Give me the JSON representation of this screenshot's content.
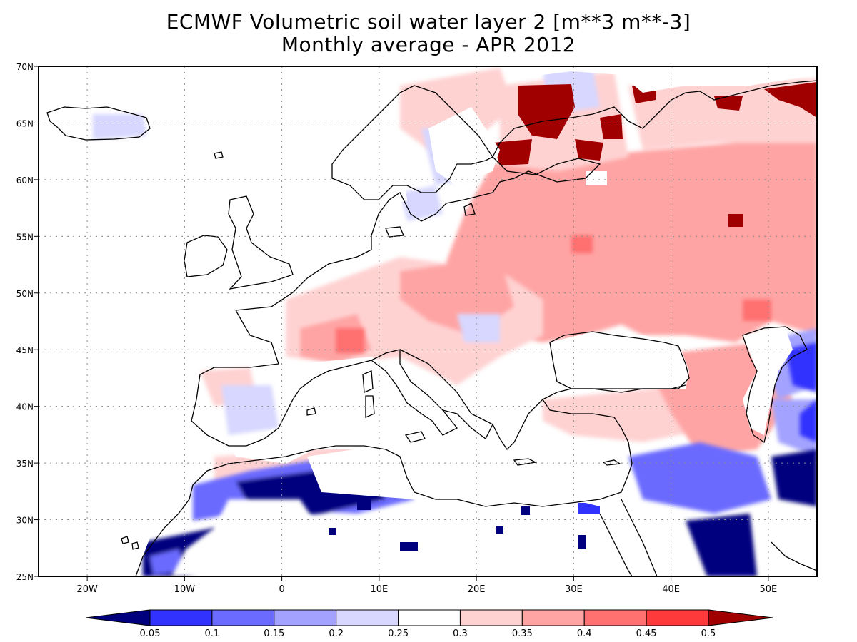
{
  "title": {
    "line1": "ECMWF Volumetric soil water layer 2 [m**3 m**-3]",
    "line2": "Monthly average - APR 2012"
  },
  "map": {
    "lon_range": [
      -25,
      55
    ],
    "lat_range": [
      25,
      70
    ],
    "lon_ticks": [
      {
        "value": -20,
        "label": "20W"
      },
      {
        "value": -10,
        "label": "10W"
      },
      {
        "value": 0,
        "label": "0"
      },
      {
        "value": 10,
        "label": "10E"
      },
      {
        "value": 20,
        "label": "20E"
      },
      {
        "value": 30,
        "label": "30E"
      },
      {
        "value": 40,
        "label": "40E"
      },
      {
        "value": 50,
        "label": "50E"
      }
    ],
    "lat_ticks": [
      {
        "value": 70,
        "label": "70N"
      },
      {
        "value": 65,
        "label": "65N"
      },
      {
        "value": 60,
        "label": "60N"
      },
      {
        "value": 55,
        "label": "55N"
      },
      {
        "value": 50,
        "label": "50N"
      },
      {
        "value": 45,
        "label": "45N"
      },
      {
        "value": 40,
        "label": "40N"
      },
      {
        "value": 35,
        "label": "35N"
      },
      {
        "value": 30,
        "label": "30N"
      },
      {
        "value": 25,
        "label": "25N"
      }
    ],
    "grid": "dotted"
  },
  "colorbar": {
    "labels": [
      "0.05",
      "0.1",
      "0.15",
      "0.2",
      "0.25",
      "0.3",
      "0.35",
      "0.4",
      "0.45",
      "0.5"
    ],
    "colors": [
      "#00007f",
      "#3232ff",
      "#6b6bff",
      "#a3a3ff",
      "#d7d7ff",
      "#ffffff",
      "#ffd2d2",
      "#ffa4a4",
      "#ff7070",
      "#ff3a3a",
      "#a00000"
    ]
  },
  "colors": {
    "land_default": "#ffffff",
    "coast": "#000000",
    "grid": "#999999"
  }
}
